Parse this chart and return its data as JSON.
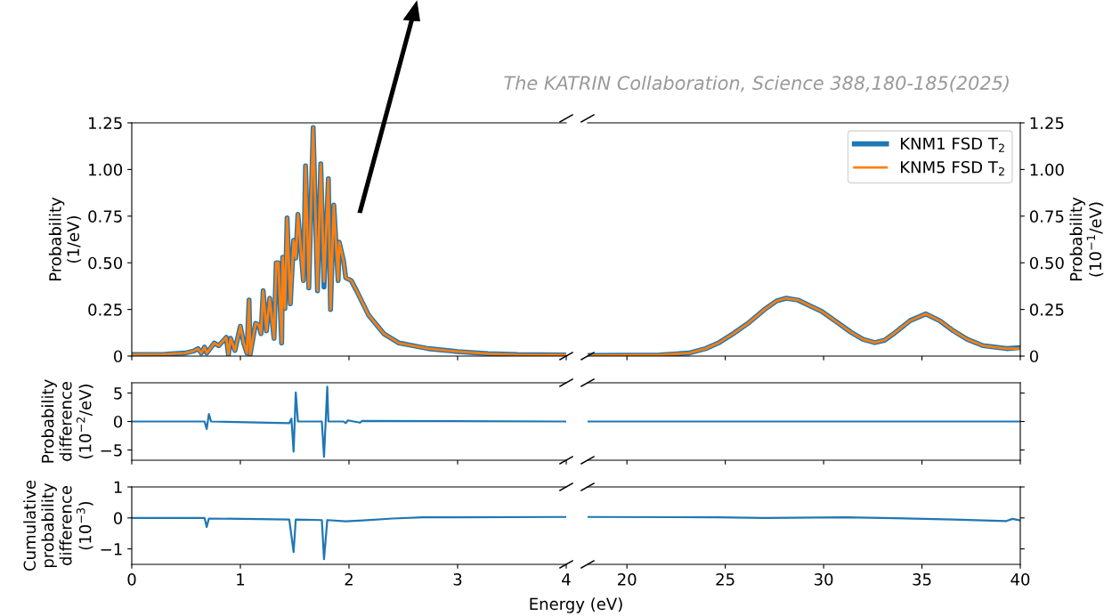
{
  "chart_data": [
    {
      "type": "line",
      "xlim": [
        0,
        4
      ],
      "ylim": [
        0,
        1.25
      ],
      "xticks": [
        0,
        1,
        2,
        3,
        4
      ],
      "yticks": [
        0,
        {
          "value": 0.25,
          "label": "0.25"
        },
        {
          "value": 0.5,
          "label": "0.50"
        },
        {
          "value": 0.75,
          "label": "0.75"
        },
        {
          "value": 1.0,
          "label": "1.00"
        },
        {
          "value": 1.25,
          "label": "1.25"
        }
      ],
      "tick_labels": "y",
      "ylabel": "Probability\n(1/eV)",
      "annotations": [
        "The KATRIN Collaboration, Science 388,180-185(2025)"
      ],
      "x": [
        0,
        0.3,
        0.49,
        0.57,
        0.61,
        0.64,
        0.67,
        0.69,
        0.76,
        0.8,
        0.87,
        0.89,
        0.91,
        0.95,
        1.0,
        1.03,
        1.06,
        1.08,
        1.09,
        1.14,
        1.17,
        1.19,
        1.21,
        1.24,
        1.27,
        1.31,
        1.33,
        1.35,
        1.38,
        1.39,
        1.41,
        1.43,
        1.46,
        1.49,
        1.51,
        1.53,
        1.58,
        1.6,
        1.63,
        1.67,
        1.71,
        1.74,
        1.77,
        1.81,
        1.83,
        1.86,
        1.9,
        1.91,
        1.95,
        1.97,
        2.02,
        2.07,
        2.18,
        2.32,
        2.46,
        2.73,
        3.0,
        3.28,
        3.55,
        4.0
      ],
      "series": [
        {
          "color": "#1f77b4",
          "values": [
            0.008,
            0.01,
            0.016,
            0.027,
            0.04,
            0.016,
            0.048,
            0.016,
            0.07,
            0.056,
            0.1,
            0.008,
            0.095,
            0.03,
            0.16,
            0.07,
            0.016,
            0.3,
            0.008,
            0.175,
            0.167,
            0.12,
            0.35,
            0.135,
            0.31,
            0.095,
            0.5,
            0.5,
            0.07,
            0.53,
            0.255,
            0.74,
            0.28,
            0.62,
            0.525,
            0.76,
            0.405,
            1.02,
            0.365,
            1.225,
            0.35,
            1.03,
            0.37,
            0.95,
            0.25,
            0.81,
            0.405,
            0.61,
            0.51,
            0.42,
            0.405,
            0.35,
            0.22,
            0.12,
            0.07,
            0.04,
            0.024,
            0.013,
            0.008,
            0.006
          ]
        },
        {
          "color": "#ff7f0e",
          "values": [
            0.008,
            0.01,
            0.016,
            0.027,
            0.04,
            0.016,
            0.048,
            0.016,
            0.07,
            0.056,
            0.1,
            0.008,
            0.095,
            0.03,
            0.16,
            0.07,
            0.016,
            0.3,
            0.008,
            0.175,
            0.167,
            0.12,
            0.35,
            0.135,
            0.31,
            0.095,
            0.5,
            0.5,
            0.07,
            0.53,
            0.255,
            0.74,
            0.28,
            0.62,
            0.525,
            0.76,
            0.405,
            1.02,
            0.365,
            1.225,
            0.35,
            1.03,
            0.4,
            0.95,
            0.25,
            0.81,
            0.405,
            0.61,
            0.51,
            0.42,
            0.405,
            0.35,
            0.22,
            0.12,
            0.07,
            0.04,
            0.024,
            0.013,
            0.008,
            0.006
          ]
        }
      ]
    },
    {
      "type": "line",
      "xlim": [
        18,
        40
      ],
      "ylim": [
        0,
        1.25
      ],
      "xticks": [
        20,
        25,
        30,
        35,
        40
      ],
      "yticks": [
        0,
        {
          "value": 0.25,
          "label": "0.25"
        },
        {
          "value": 0.5,
          "label": "0.50"
        },
        {
          "value": 0.75,
          "label": "0.75"
        },
        {
          "value": 1.0,
          "label": "1.00"
        },
        {
          "value": 1.25,
          "label": "1.25"
        }
      ],
      "tick_labels": "y",
      "ylabel": "Probability\n(10$^{−1}$/eV)",
      "legend": "top right",
      "x": [
        18.05,
        21.65,
        23.15,
        24.0,
        24.65,
        25.4,
        26.15,
        27.0,
        27.6,
        28.1,
        28.7,
        29.3,
        29.9,
        30.7,
        31.4,
        32.0,
        32.6,
        33.1,
        33.65,
        34.4,
        35.2,
        35.9,
        36.6,
        37.3,
        38.1,
        39.3,
        40
      ],
      "series": [
        {
          "name": "KNM1 FSD T$_{2}$",
          "color": "#1f77b4",
          "values": [
            0.003,
            0.006,
            0.016,
            0.04,
            0.07,
            0.12,
            0.175,
            0.25,
            0.295,
            0.31,
            0.3,
            0.27,
            0.24,
            0.18,
            0.127,
            0.09,
            0.072,
            0.085,
            0.127,
            0.19,
            0.226,
            0.19,
            0.135,
            0.09,
            0.056,
            0.04,
            0.045
          ]
        },
        {
          "name": "KNM5 FSD T$_{2}$",
          "color": "#ff7f0e",
          "values": [
            0.003,
            0.006,
            0.016,
            0.04,
            0.07,
            0.12,
            0.175,
            0.25,
            0.295,
            0.31,
            0.3,
            0.27,
            0.24,
            0.18,
            0.127,
            0.09,
            0.072,
            0.085,
            0.127,
            0.19,
            0.226,
            0.19,
            0.135,
            0.09,
            0.056,
            0.04,
            0.04
          ]
        }
      ]
    },
    {
      "type": "line",
      "xlim": [
        0,
        4
      ],
      "ylim": [
        -6.8,
        6.8
      ],
      "xticks": [
        0,
        1,
        2,
        3,
        4
      ],
      "yticks": [
        {
          "value": -5,
          "label": "−5"
        },
        0,
        5
      ],
      "tick_labels": "y",
      "ylabel": "Probability\ndifference\n(10$^{−2}$/eV)",
      "x": [
        0,
        0.67,
        0.69,
        0.71,
        0.73,
        1.45,
        1.47,
        1.49,
        1.51,
        1.53,
        1.75,
        1.77,
        1.8,
        1.81,
        1.95,
        1.97,
        1.99,
        2.1,
        2.12,
        4.0
      ],
      "series": [
        {
          "color": "#1f77b4",
          "values": [
            0,
            0,
            -1.3,
            1.3,
            0,
            -0.3,
            0.5,
            -5.3,
            5.1,
            0,
            0,
            -6.2,
            6.1,
            0,
            0,
            -0.3,
            0.2,
            -0.2,
            0.1,
            0
          ]
        }
      ]
    },
    {
      "type": "line",
      "xlim": [
        18,
        40
      ],
      "ylim": [
        -6.8,
        6.8
      ],
      "xticks": [
        20,
        25,
        30,
        35,
        40
      ],
      "yticks": [
        -5,
        0,
        5
      ],
      "tick_labels": false,
      "x": [
        18.05,
        40
      ],
      "series": [
        {
          "color": "#1f77b4",
          "values": [
            0,
            0
          ]
        }
      ]
    },
    {
      "type": "line",
      "xlim": [
        0,
        4
      ],
      "ylim": [
        -1.5,
        1
      ],
      "xticks": [
        0,
        1,
        2,
        3,
        4
      ],
      "yticks": [
        {
          "value": -1,
          "label": "−1"
        },
        0,
        1
      ],
      "ylabel": "Cumulative\nprobability\ndifference\n(10$^{−3}$)",
      "xlabel": "Energy (eV)",
      "x": [
        0,
        0.67,
        0.69,
        0.71,
        1.45,
        1.49,
        1.51,
        1.75,
        1.77,
        1.8,
        1.97,
        2.13,
        2.4,
        2.68,
        4.0
      ],
      "series": [
        {
          "color": "#1f77b4",
          "values": [
            0,
            0,
            -0.29,
            -0.02,
            -0.05,
            -1.1,
            -0.05,
            -0.07,
            -1.33,
            -0.07,
            -0.11,
            -0.08,
            -0.02,
            0.02,
            0.03
          ]
        }
      ]
    },
    {
      "type": "line",
      "xlim": [
        18,
        40
      ],
      "ylim": [
        -1.5,
        1
      ],
      "xticks": [
        20,
        25,
        30,
        35,
        40
      ],
      "yticks": [
        -1,
        0,
        1
      ],
      "tick_labels": "x",
      "x": [
        18.05,
        24.6,
        27.0,
        31.1,
        33.6,
        36.6,
        39.3,
        39.6,
        40
      ],
      "series": [
        {
          "color": "#1f77b4",
          "values": [
            0.03,
            0.02,
            0.0,
            0.02,
            -0.01,
            -0.05,
            -0.1,
            -0.03,
            -0.08
          ]
        }
      ]
    }
  ]
}
